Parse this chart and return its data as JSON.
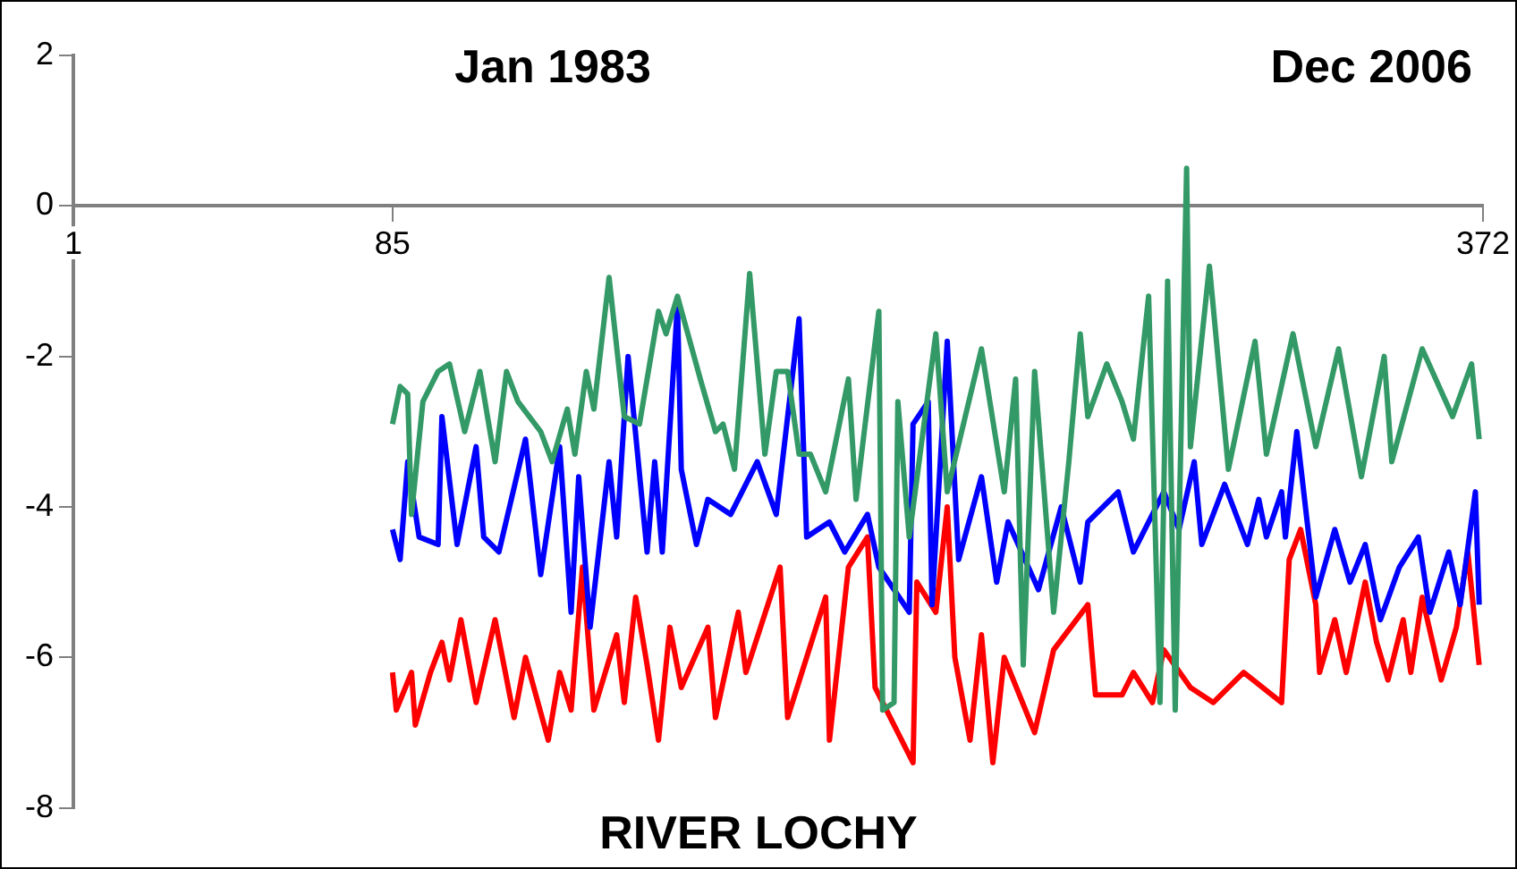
{
  "chart_data": {
    "type": "line",
    "title": "RIVER LOCHY",
    "annotations": [
      "Jan 1983",
      "Dec 2006"
    ],
    "xlim": [
      1,
      372
    ],
    "xticks": [
      1,
      85,
      372
    ],
    "ylim": [
      -8,
      2
    ],
    "yticks": [
      -8,
      -6,
      -4,
      -2,
      0,
      2
    ],
    "marker": "none",
    "series": [
      {
        "color": "#339966",
        "x": [
          85,
          87,
          89,
          90,
          93,
          97,
          100,
          104,
          108,
          112,
          115,
          118,
          124,
          127,
          131,
          133,
          136,
          138,
          142,
          146,
          150,
          155,
          157,
          160,
          166,
          170,
          172,
          175,
          179,
          183,
          186,
          189,
          192,
          195,
          199,
          205,
          207,
          213,
          214,
          217,
          218,
          221,
          228,
          231,
          240,
          246,
          249,
          251,
          254,
          259,
          263,
          266,
          268,
          273,
          277,
          280,
          284,
          287,
          289,
          291,
          294,
          295,
          300,
          305,
          312,
          315,
          322,
          328,
          334,
          340,
          346,
          348,
          356,
          364,
          369,
          371
        ],
        "values": [
          -2.9,
          -2.4,
          -2.5,
          -4.1,
          -2.6,
          -2.2,
          -2.1,
          -3.0,
          -2.2,
          -3.4,
          -2.2,
          -2.6,
          -3.0,
          -3.4,
          -2.7,
          -3.3,
          -2.2,
          -2.7,
          -0.95,
          -2.8,
          -2.9,
          -1.4,
          -1.7,
          -1.2,
          -2.3,
          -3.0,
          -2.9,
          -3.5,
          -0.9,
          -3.3,
          -2.2,
          -2.2,
          -3.3,
          -3.3,
          -3.8,
          -2.3,
          -3.9,
          -1.4,
          -6.7,
          -6.6,
          -2.6,
          -4.4,
          -1.7,
          -3.8,
          -1.9,
          -3.8,
          -2.3,
          -6.1,
          -2.2,
          -5.4,
          -3.4,
          -1.7,
          -2.8,
          -2.1,
          -2.6,
          -3.1,
          -1.2,
          -6.6,
          -1.0,
          -6.7,
          0.5,
          -3.2,
          -0.8,
          -3.5,
          -1.8,
          -3.3,
          -1.7,
          -3.2,
          -1.9,
          -3.6,
          -2.0,
          -3.4,
          -1.9,
          -2.8,
          -2.1,
          -3.1
        ]
      },
      {
        "color": "#0000ff",
        "x": [
          85,
          87,
          89,
          92,
          97,
          98,
          102,
          107,
          109,
          113,
          120,
          124,
          129,
          132,
          134,
          137,
          142,
          144,
          147,
          152,
          154,
          156,
          160,
          161,
          165,
          168,
          174,
          181,
          186,
          192,
          194,
          200,
          204,
          210,
          213,
          221,
          222,
          226,
          227,
          231,
          234,
          240,
          244,
          247,
          255,
          261,
          266,
          268,
          276,
          280,
          288,
          292,
          296,
          298,
          304,
          310,
          313,
          315,
          319,
          320,
          323,
          328,
          333,
          337,
          341,
          345,
          350,
          355,
          358,
          363,
          366,
          370,
          371
        ],
        "values": [
          -4.3,
          -4.7,
          -3.4,
          -4.4,
          -4.5,
          -2.8,
          -4.5,
          -3.2,
          -4.4,
          -4.6,
          -3.1,
          -4.9,
          -3.2,
          -5.4,
          -3.6,
          -5.6,
          -3.4,
          -4.4,
          -2.0,
          -4.6,
          -3.4,
          -4.6,
          -1.3,
          -3.5,
          -4.5,
          -3.9,
          -4.1,
          -3.4,
          -4.1,
          -1.5,
          -4.4,
          -4.2,
          -4.6,
          -4.1,
          -4.8,
          -5.4,
          -2.9,
          -2.6,
          -5.3,
          -1.8,
          -4.7,
          -3.6,
          -5.0,
          -4.2,
          -5.1,
          -4.0,
          -5.0,
          -4.2,
          -3.8,
          -4.6,
          -3.8,
          -4.3,
          -3.4,
          -4.5,
          -3.7,
          -4.5,
          -3.9,
          -4.4,
          -3.8,
          -4.4,
          -3.0,
          -5.2,
          -4.3,
          -5.0,
          -4.5,
          -5.5,
          -4.8,
          -4.4,
          -5.4,
          -4.6,
          -5.3,
          -3.8,
          -5.3
        ]
      },
      {
        "color": "#ff0000",
        "x": [
          85,
          86,
          90,
          91,
          95,
          98,
          100,
          103,
          107,
          112,
          117,
          120,
          126,
          129,
          132,
          135,
          138,
          144,
          146,
          149,
          152,
          155,
          158,
          161,
          168,
          170,
          176,
          178,
          187,
          189,
          199,
          200,
          205,
          210,
          212,
          222,
          223,
          228,
          231,
          233,
          237,
          240,
          243,
          246,
          254,
          259,
          268,
          270,
          277,
          280,
          285,
          288,
          295,
          301,
          309,
          319,
          321,
          324,
          328,
          329,
          333,
          336,
          341,
          344,
          347,
          351,
          353,
          356,
          361,
          365,
          368,
          371
        ],
        "values": [
          -6.2,
          -6.7,
          -6.2,
          -6.9,
          -6.2,
          -5.8,
          -6.3,
          -5.5,
          -6.6,
          -5.5,
          -6.8,
          -6.0,
          -7.1,
          -6.2,
          -6.7,
          -4.8,
          -6.7,
          -5.7,
          -6.6,
          -5.2,
          -6.1,
          -7.1,
          -5.6,
          -6.4,
          -5.6,
          -6.8,
          -5.4,
          -6.2,
          -4.8,
          -6.8,
          -5.2,
          -7.1,
          -4.8,
          -4.4,
          -6.4,
          -7.4,
          -5.0,
          -5.4,
          -4.0,
          -6.0,
          -7.1,
          -5.7,
          -7.4,
          -6.0,
          -7.0,
          -5.9,
          -5.3,
          -6.5,
          -6.5,
          -6.2,
          -6.6,
          -5.9,
          -6.4,
          -6.6,
          -6.2,
          -6.6,
          -4.7,
          -4.3,
          -5.3,
          -6.2,
          -5.5,
          -6.2,
          -5.0,
          -5.8,
          -6.3,
          -5.5,
          -6.2,
          -5.2,
          -6.3,
          -5.6,
          -4.6,
          -6.1
        ]
      }
    ]
  }
}
